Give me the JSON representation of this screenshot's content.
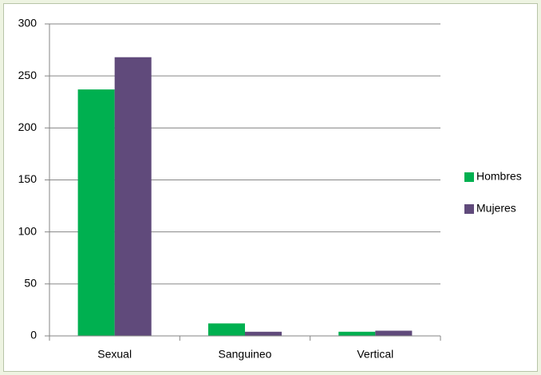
{
  "chart_data": {
    "type": "bar",
    "categories": [
      "Sexual",
      "Sanguineo",
      "Vertical"
    ],
    "series": [
      {
        "name": "Hombres",
        "color": "#00b050",
        "values": [
          237,
          12,
          4
        ]
      },
      {
        "name": "Mujeres",
        "color": "#604a7b",
        "values": [
          268,
          4,
          5
        ]
      }
    ],
    "ylim": [
      0,
      300
    ],
    "yticks": [
      0,
      50,
      100,
      150,
      200,
      250,
      300
    ],
    "grid": true,
    "legend": "right"
  }
}
